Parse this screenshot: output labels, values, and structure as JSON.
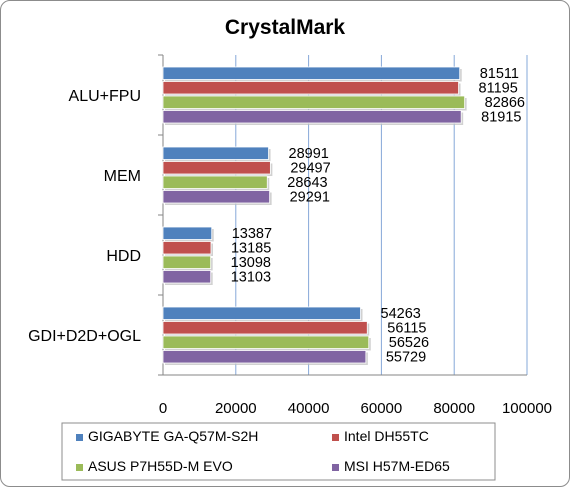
{
  "chart_data": {
    "type": "bar",
    "orientation": "horizontal",
    "title": "CrystalMark",
    "categories": [
      "ALU+FPU",
      "MEM",
      "HDD",
      "GDI+D2D+OGL"
    ],
    "series": [
      {
        "name": "GIGABYTE GA-Q57M-S2H",
        "values": [
          81511,
          28991,
          13387,
          54263
        ]
      },
      {
        "name": "Intel DH55TC",
        "values": [
          81195,
          29497,
          13185,
          56115
        ]
      },
      {
        "name": "ASUS P7H55D-M EVO",
        "values": [
          82866,
          28643,
          13098,
          56526
        ]
      },
      {
        "name": "MSI H57M-ED65",
        "values": [
          81915,
          29291,
          13103,
          55729
        ]
      }
    ],
    "x_ticks": [
      "0",
      "20000",
      "40000",
      "60000",
      "80000",
      "100000"
    ],
    "xlim": [
      0,
      100000
    ],
    "grid": "vertical",
    "legend_position": "bottom",
    "data_labels": true,
    "colors": [
      "#4f81bd",
      "#c0504d",
      "#9bbb59",
      "#8064a2"
    ]
  }
}
